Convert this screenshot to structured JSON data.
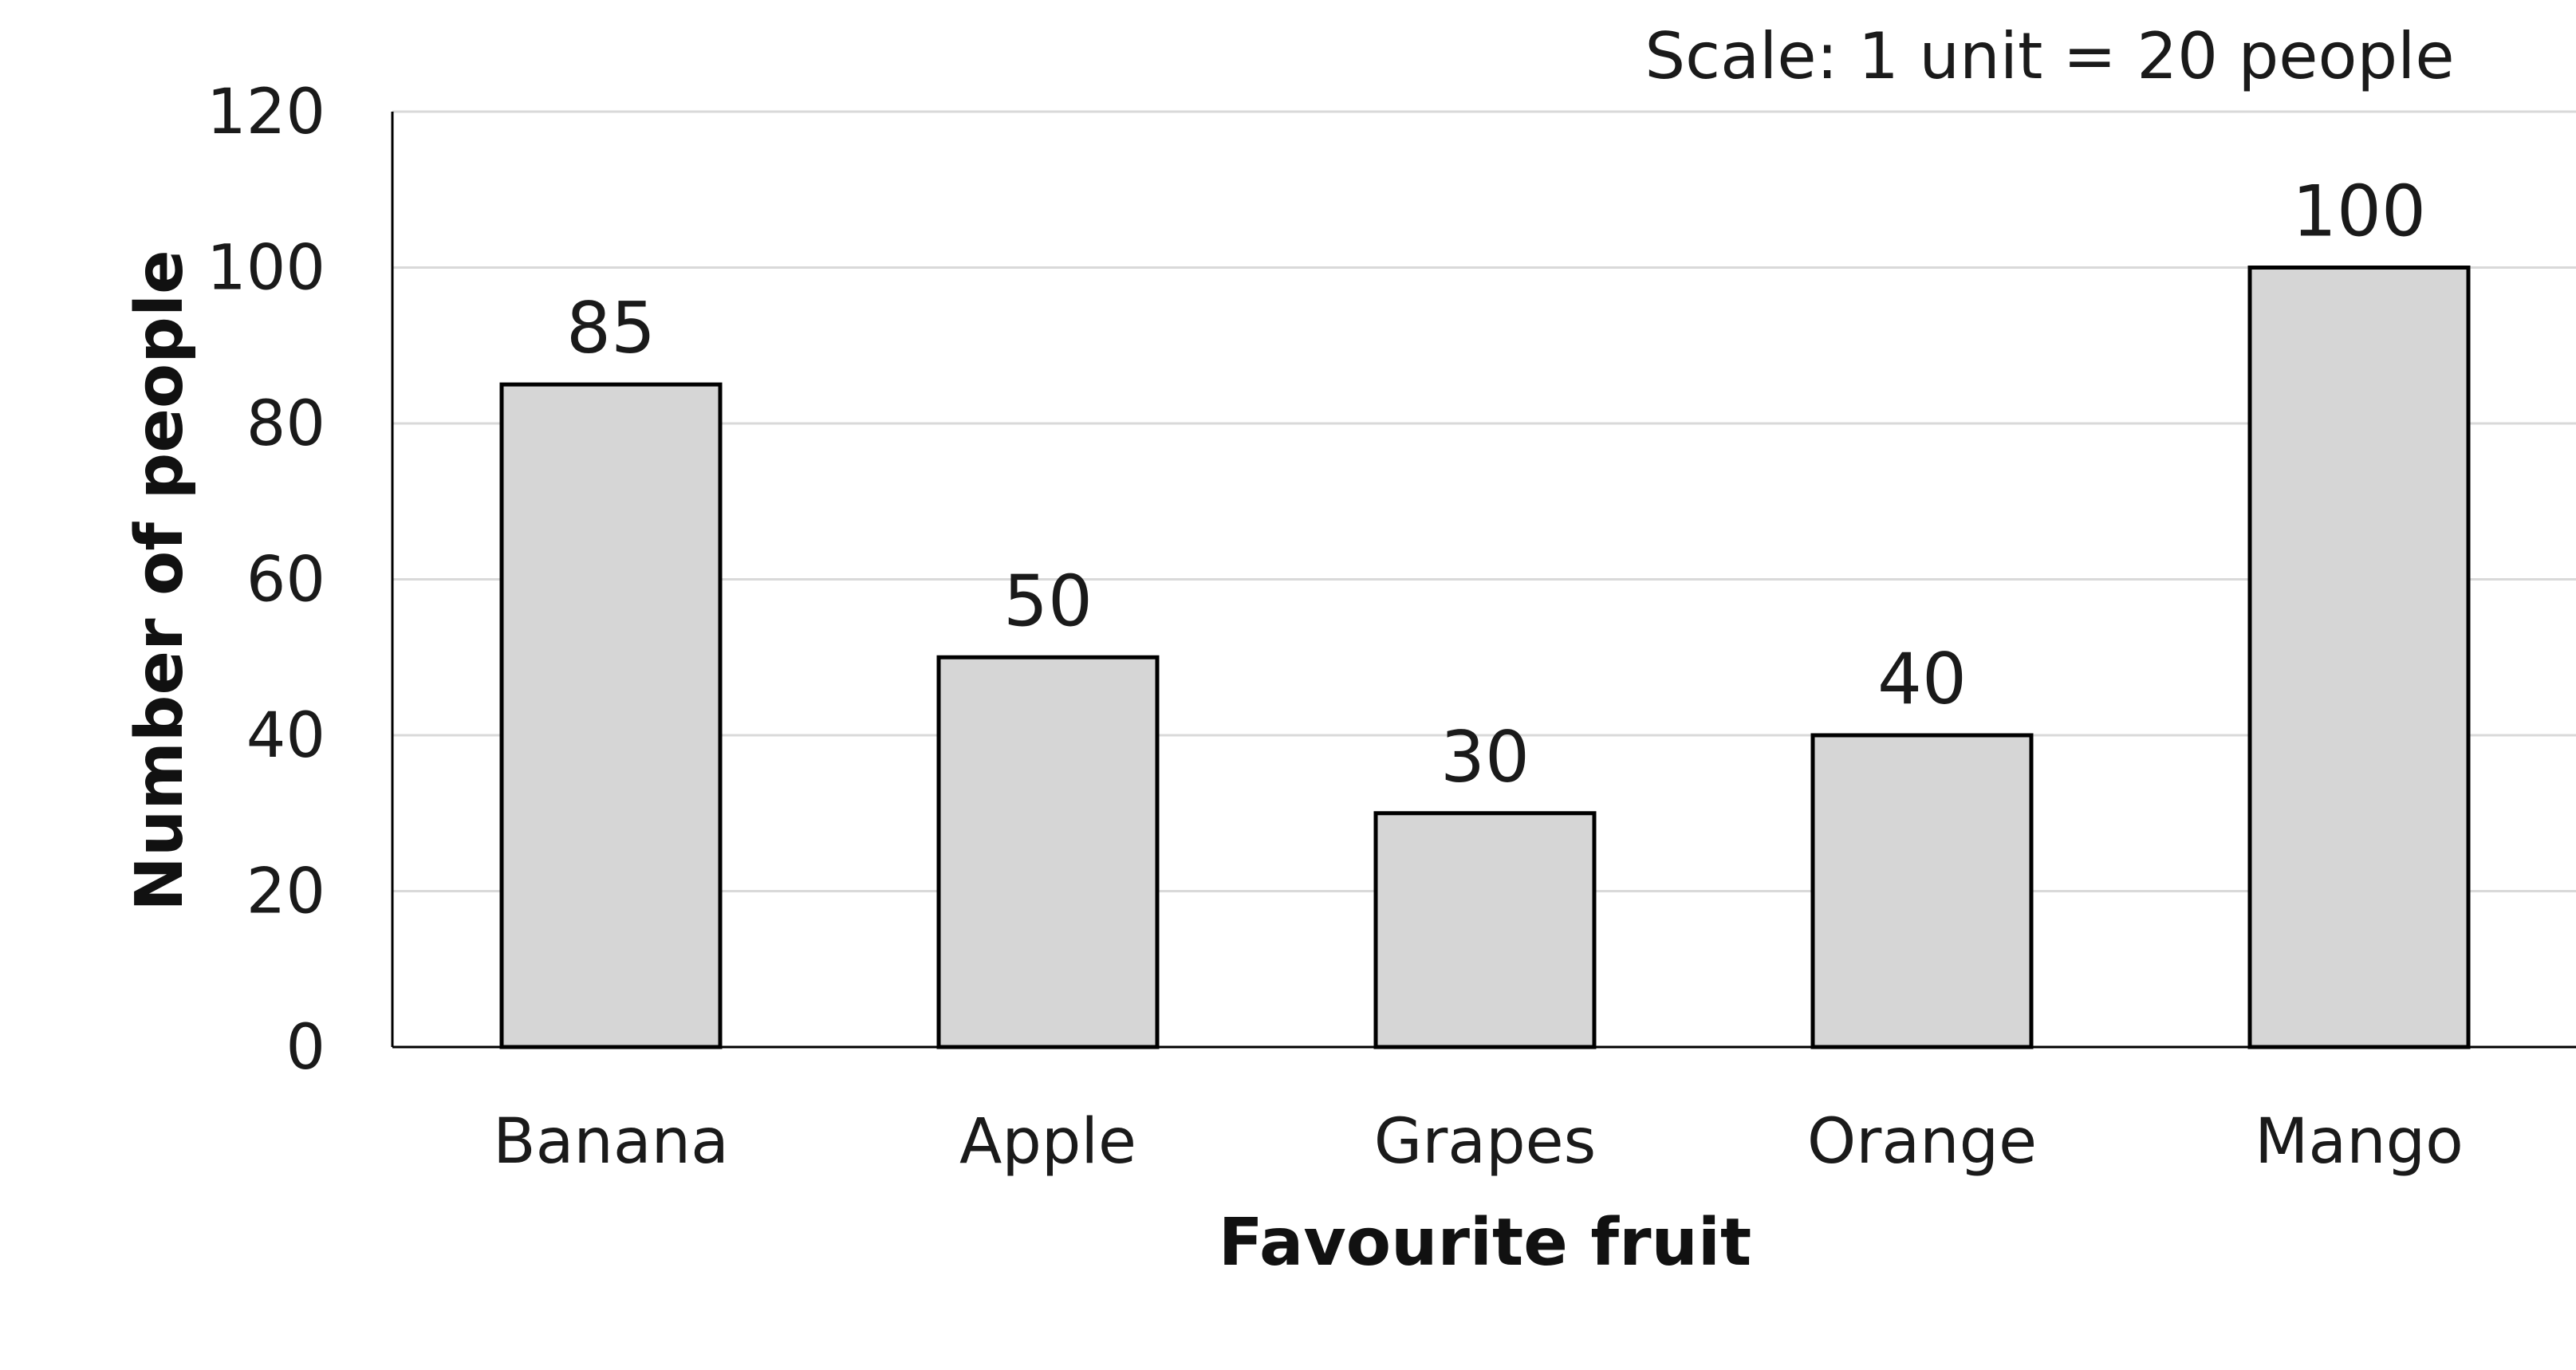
{
  "chart_data": {
    "type": "bar",
    "categories": [
      "Banana",
      "Apple",
      "Grapes",
      "Orange",
      "Mango"
    ],
    "values": [
      85,
      50,
      30,
      40,
      100
    ],
    "data_labels": [
      "85",
      "50",
      "30",
      "40",
      "100"
    ],
    "xlabel": "Favourite fruit",
    "ylabel": "Number of people",
    "ylim": [
      0,
      120
    ],
    "yticks": [
      0,
      20,
      40,
      60,
      80,
      100,
      120
    ],
    "ytick_labels": [
      "0",
      "20",
      "40",
      "60",
      "80",
      "100",
      "120"
    ],
    "annotation": "Scale: 1 unit = 20 people",
    "grid": true,
    "legend": false,
    "colors": {
      "bar_fill": "#d6d6d6",
      "bar_stroke": "#000000",
      "gridline": "#d9d9d9",
      "axis": "#000000"
    }
  }
}
